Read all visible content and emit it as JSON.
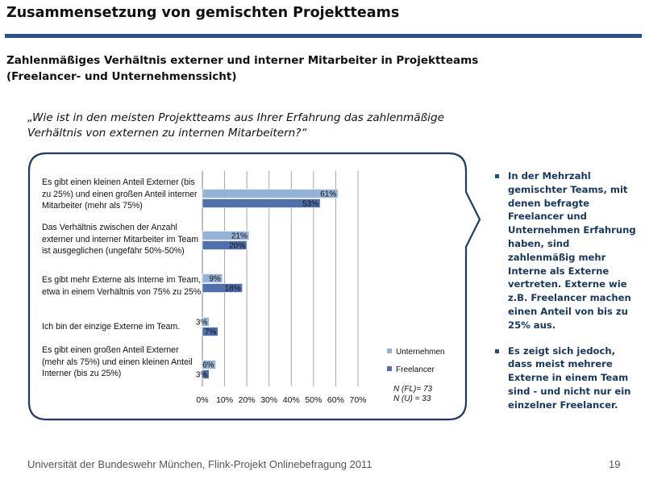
{
  "slide": {
    "title": "Zusammensetzung von gemischten Projektteams",
    "subtitle_line1": "Zahlenmäßiges Verhältnis externer und interner Mitarbeiter in Projektteams",
    "subtitle_line2": "(Freelancer- und Unternehmenssicht)",
    "question_line1": "„Wie ist in den meisten Projektteams aus Ihrer Erfahrung das zahlenmäßige",
    "question_line2": "Verhältnis von externen zu internen Mitarbeitern?“",
    "bullets": [
      "In der Mehrzahl gemischter Teams, mit denen befragte Freelancer und Unternehmen Erfahrung haben, sind zahlenmäßig mehr Interne als Externe vertreten. Externe wie z.B. Freelancer machen einen Anteil von bis zu 25% aus.",
      "Es zeigt sich jedoch, dass meist mehrere Externe in einem Team sind - und nicht nur ein einzelner Freelancer."
    ],
    "footer": "Universität der Bundeswehr München, Flink-Projekt Onlinebefragung  2011",
    "page_number": "19"
  },
  "chart_data": {
    "type": "bar",
    "orientation": "horizontal",
    "categories": [
      "Es gibt einen kleinen Anteil Externer (bis zu 25%) und einen großen Anteil interner Mitarbeiter (mehr als 75%)",
      "Das Verhältnis zwischen der Anzahl externer und interner Mitarbeiter im Team ist ausgeglichen (ungefähr 50%-50%)",
      "Es gibt mehr Externe als Interne im Team, etwa in einem Verhältnis von 75% zu 25%",
      "Ich bin der einzige Externe im Team.",
      "Es gibt einen großen Anteil Externer (mehr als 75%) und einen kleinen Anteil Interner (bis zu 25%)"
    ],
    "series": [
      {
        "name": "Unternehmen",
        "values": [
          61,
          21,
          9,
          3,
          6
        ],
        "color": "#95b3d7"
      },
      {
        "name": "Freelancer",
        "values": [
          53,
          20,
          18,
          7,
          3
        ],
        "color": "#4f6fad"
      }
    ],
    "value_suffix": "%",
    "xlim": [
      0,
      70
    ],
    "xticks": [
      "0%",
      "10%",
      "20%",
      "30%",
      "40%",
      "50%",
      "60%",
      "70%"
    ],
    "grid": true,
    "legend_position": "right",
    "sample_notes": [
      "N (FL)= 73",
      "N (U) = 33"
    ]
  }
}
